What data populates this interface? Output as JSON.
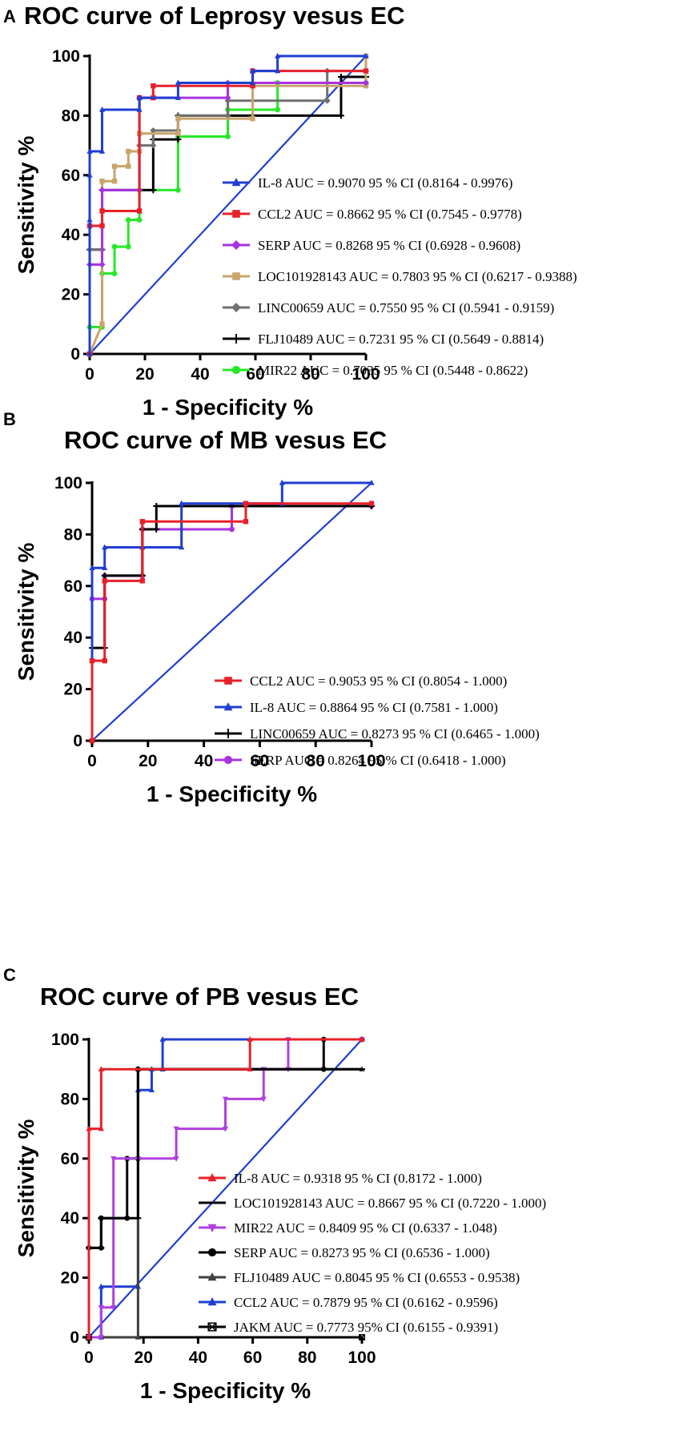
{
  "chart_data": [
    {
      "panel": "A",
      "type": "line",
      "title": "ROC curve of Leprosy vesus EC",
      "xlabel": "1 - Specificity %",
      "ylabel": "Sensitivity %",
      "xlim": [
        0,
        100
      ],
      "ylim": [
        0,
        100
      ],
      "xticks": [
        "0",
        "20",
        "40",
        "60",
        "80",
        "100"
      ],
      "yticks": [
        "0",
        "20",
        "40",
        "60",
        "80",
        "100"
      ],
      "series": [
        {
          "name": "IL-8 AUC = 0.9070 95 % CI (0.8164 - 0.9976)",
          "color": "#1f3fd1",
          "marker": "triangle",
          "x": [
            0,
            0,
            0,
            0,
            4.5,
            4.5,
            18,
            18,
            32,
            32,
            59,
            59,
            68,
            68,
            100
          ],
          "y": [
            0,
            45,
            60,
            68,
            68,
            82,
            82,
            86,
            86,
            91,
            91,
            95,
            95,
            100,
            100
          ]
        },
        {
          "name": "CCL2 AUC = 0.8662 95 % CI (0.7545 - 0.9778)",
          "color": "#e8202a",
          "marker": "square",
          "x": [
            0,
            0,
            4.5,
            4.5,
            18,
            18,
            23,
            23,
            59,
            59,
            100
          ],
          "y": [
            0,
            43,
            43,
            48,
            48,
            86,
            86,
            90,
            90,
            95,
            95
          ]
        },
        {
          "name": "SERP AUC = 0.8268 95 % CI (0.6928 - 0.9608)",
          "color": "#a833e0",
          "marker": "diamond",
          "x": [
            0,
            0,
            4.5,
            4.5,
            18,
            18,
            50,
            50,
            100
          ],
          "y": [
            0,
            30,
            30,
            55,
            55,
            86,
            86,
            91,
            91
          ]
        },
        {
          "name": "LOC101928143 AUC = 0.7803 95 % CI (0.6217 - 0.9388)",
          "color": "#c9a46b",
          "marker": "square",
          "x": [
            0,
            4.5,
            4.5,
            9,
            9,
            14,
            14,
            18,
            18,
            32,
            32,
            59,
            59,
            100,
            100
          ],
          "y": [
            0,
            10,
            58,
            58,
            63,
            63,
            68,
            68,
            74,
            74,
            79,
            79,
            90,
            90,
            100
          ]
        },
        {
          "name": "LINC00659 AUC = 0.7550 95 % CI (0.5941 - 0.9159)",
          "color": "#707070",
          "marker": "diamond",
          "x": [
            0,
            0,
            4.5,
            4.5,
            18,
            18,
            23,
            23,
            32,
            32,
            50,
            50,
            86,
            86,
            100
          ],
          "y": [
            0,
            35,
            35,
            55,
            55,
            70,
            70,
            75,
            75,
            80,
            80,
            85,
            85,
            95,
            95
          ]
        },
        {
          "name": "FLJ10489 AUC = 0.7231 95 % CI (0.5649 - 0.8814)",
          "color": "#000000",
          "marker": "plus",
          "x": [
            0,
            0,
            4.5,
            4.5,
            23,
            23,
            32,
            32,
            91,
            91,
            100
          ],
          "y": [
            0,
            35,
            35,
            55,
            55,
            72,
            72,
            80,
            80,
            93,
            93
          ]
        },
        {
          "name": "MIR22 AUC = 0.7035 95 % CI (0.5448 - 0.8622)",
          "color": "#27e827",
          "marker": "circle",
          "x": [
            0,
            0,
            4.5,
            4.5,
            9,
            9,
            14,
            14,
            18,
            18,
            32,
            32,
            50,
            50,
            68,
            68,
            100
          ],
          "y": [
            0,
            9,
            9,
            27,
            27,
            36,
            36,
            45,
            45,
            55,
            55,
            73,
            73,
            82,
            82,
            91,
            91
          ]
        },
        {
          "name": "",
          "color": "#1f3fd1",
          "marker": "none",
          "x": [
            0,
            100
          ],
          "y": [
            0,
            100
          ]
        }
      ]
    },
    {
      "panel": "B",
      "type": "line",
      "title": "ROC curve of MB vesus EC",
      "xlabel": "1 - Specificity %",
      "ylabel": "Sensitivity %",
      "xlim": [
        0,
        100
      ],
      "ylim": [
        0,
        100
      ],
      "xticks": [
        "0",
        "20",
        "40",
        "60",
        "80",
        "100"
      ],
      "yticks": [
        "0",
        "20",
        "40",
        "60",
        "80",
        "100"
      ],
      "series": [
        {
          "name": "CCL2 AUC = 0.9053 95 % CI (0.8054 - 1.000)",
          "color": "#e8202a",
          "marker": "square",
          "x": [
            0,
            0,
            4.5,
            4.5,
            18,
            18,
            55,
            55,
            100
          ],
          "y": [
            0,
            31,
            31,
            62,
            62,
            85,
            85,
            92,
            92
          ]
        },
        {
          "name": "IL-8 AUC = 0.8864 95 % CI (0.7581 - 1.000)",
          "color": "#1f3fd1",
          "marker": "triangle",
          "x": [
            0,
            0,
            4.5,
            4.5,
            18,
            18,
            32,
            32,
            68,
            68,
            100
          ],
          "y": [
            0,
            67,
            67,
            75,
            75,
            75,
            75,
            92,
            92,
            100,
            100
          ]
        },
        {
          "name": "LINC00659 AUC = 0.8273 95 % CI (0.6465 - 1.000)",
          "color": "#000000",
          "marker": "plus",
          "x": [
            0,
            0,
            4.5,
            4.5,
            18,
            18,
            23,
            23,
            100
          ],
          "y": [
            0,
            36,
            36,
            64,
            64,
            82,
            82,
            91,
            91
          ]
        },
        {
          "name": "SERP AUC = 0.8264 95 % CI (0.6418 - 1.000)",
          "color": "#a833e0",
          "marker": "circle",
          "x": [
            0,
            0,
            4.5,
            4.5,
            18,
            18,
            50,
            50,
            100
          ],
          "y": [
            0,
            55,
            55,
            64,
            64,
            82,
            82,
            91,
            91
          ]
        },
        {
          "name": "",
          "color": "#1f3fd1",
          "marker": "none",
          "x": [
            0,
            100
          ],
          "y": [
            0,
            100
          ]
        }
      ]
    },
    {
      "panel": "C",
      "type": "line",
      "title": "ROC curve of PB vesus EC",
      "xlabel": "1 - Specificity %",
      "ylabel": "Sensitivity %",
      "xlim": [
        0,
        100
      ],
      "ylim": [
        0,
        100
      ],
      "xticks": [
        "0",
        "20",
        "40",
        "60",
        "80",
        "100"
      ],
      "yticks": [
        "0",
        "20",
        "40",
        "60",
        "80",
        "100"
      ],
      "series": [
        {
          "name": "IL-8 AUC = 0.9318 95 % CI (0.8172 - 1.000)",
          "color": "#e8202a",
          "marker": "triangle",
          "x": [
            0,
            0,
            4.5,
            4.5,
            59,
            59,
            100
          ],
          "y": [
            0,
            70,
            70,
            90,
            90,
            100,
            100
          ]
        },
        {
          "name": "LOC101928143 AUC = 0.8667 95 % CI (0.7220 - 1.000)",
          "color": "#000000",
          "marker": "dash",
          "x": [
            0,
            0,
            4.5,
            4.5,
            18,
            18,
            100
          ],
          "y": [
            0,
            30,
            30,
            40,
            40,
            90,
            90
          ]
        },
        {
          "name": "MIR22 AUC = 0.8409 95 % CI (0.6337 - 1.048)",
          "color": "#b040e0",
          "marker": "triangle-down",
          "x": [
            0,
            0,
            4.5,
            4.5,
            9,
            9,
            18,
            18,
            32,
            32,
            50,
            50,
            64,
            64,
            73,
            73,
            100
          ],
          "y": [
            0,
            0,
            0,
            10,
            10,
            60,
            60,
            60,
            60,
            70,
            70,
            80,
            80,
            90,
            90,
            100,
            100
          ]
        },
        {
          "name": "SERP AUC = 0.8273 95 % CI (0.6536 - 1.000)",
          "color": "#000000",
          "marker": "circle",
          "x": [
            0,
            0,
            4.5,
            4.5,
            14,
            14,
            18,
            18,
            86,
            86,
            100
          ],
          "y": [
            0,
            30,
            30,
            40,
            40,
            60,
            60,
            90,
            90,
            100,
            100
          ]
        },
        {
          "name": "FLJ10489 AUC = 0.8045 95 % CI (0.6553 - 0.9538)",
          "color": "#404040",
          "marker": "triangle",
          "x": [
            0,
            0,
            18,
            18,
            100
          ],
          "y": [
            0,
            0,
            0,
            90,
            90
          ]
        },
        {
          "name": "CCL2 AUC = 0.7879 95 % CI (0.6162 - 0.9596)",
          "color": "#1f3fd1",
          "marker": "triangle",
          "x": [
            0,
            4.5,
            4.5,
            18,
            18,
            23,
            23,
            27,
            27,
            100
          ],
          "y": [
            0,
            0,
            17,
            17,
            83,
            83,
            90,
            90,
            100,
            100
          ]
        },
        {
          "name": "JAKM AUC = 0.7773 95% CI (0.6155 - 0.9391)",
          "color": "#000000",
          "marker": "square-x",
          "x": [
            0,
            0,
            100
          ],
          "y": [
            0,
            0,
            0
          ]
        },
        {
          "name": "",
          "color": "#1f3fd1",
          "marker": "none",
          "x": [
            0,
            100
          ],
          "y": [
            0,
            100
          ]
        }
      ]
    }
  ]
}
